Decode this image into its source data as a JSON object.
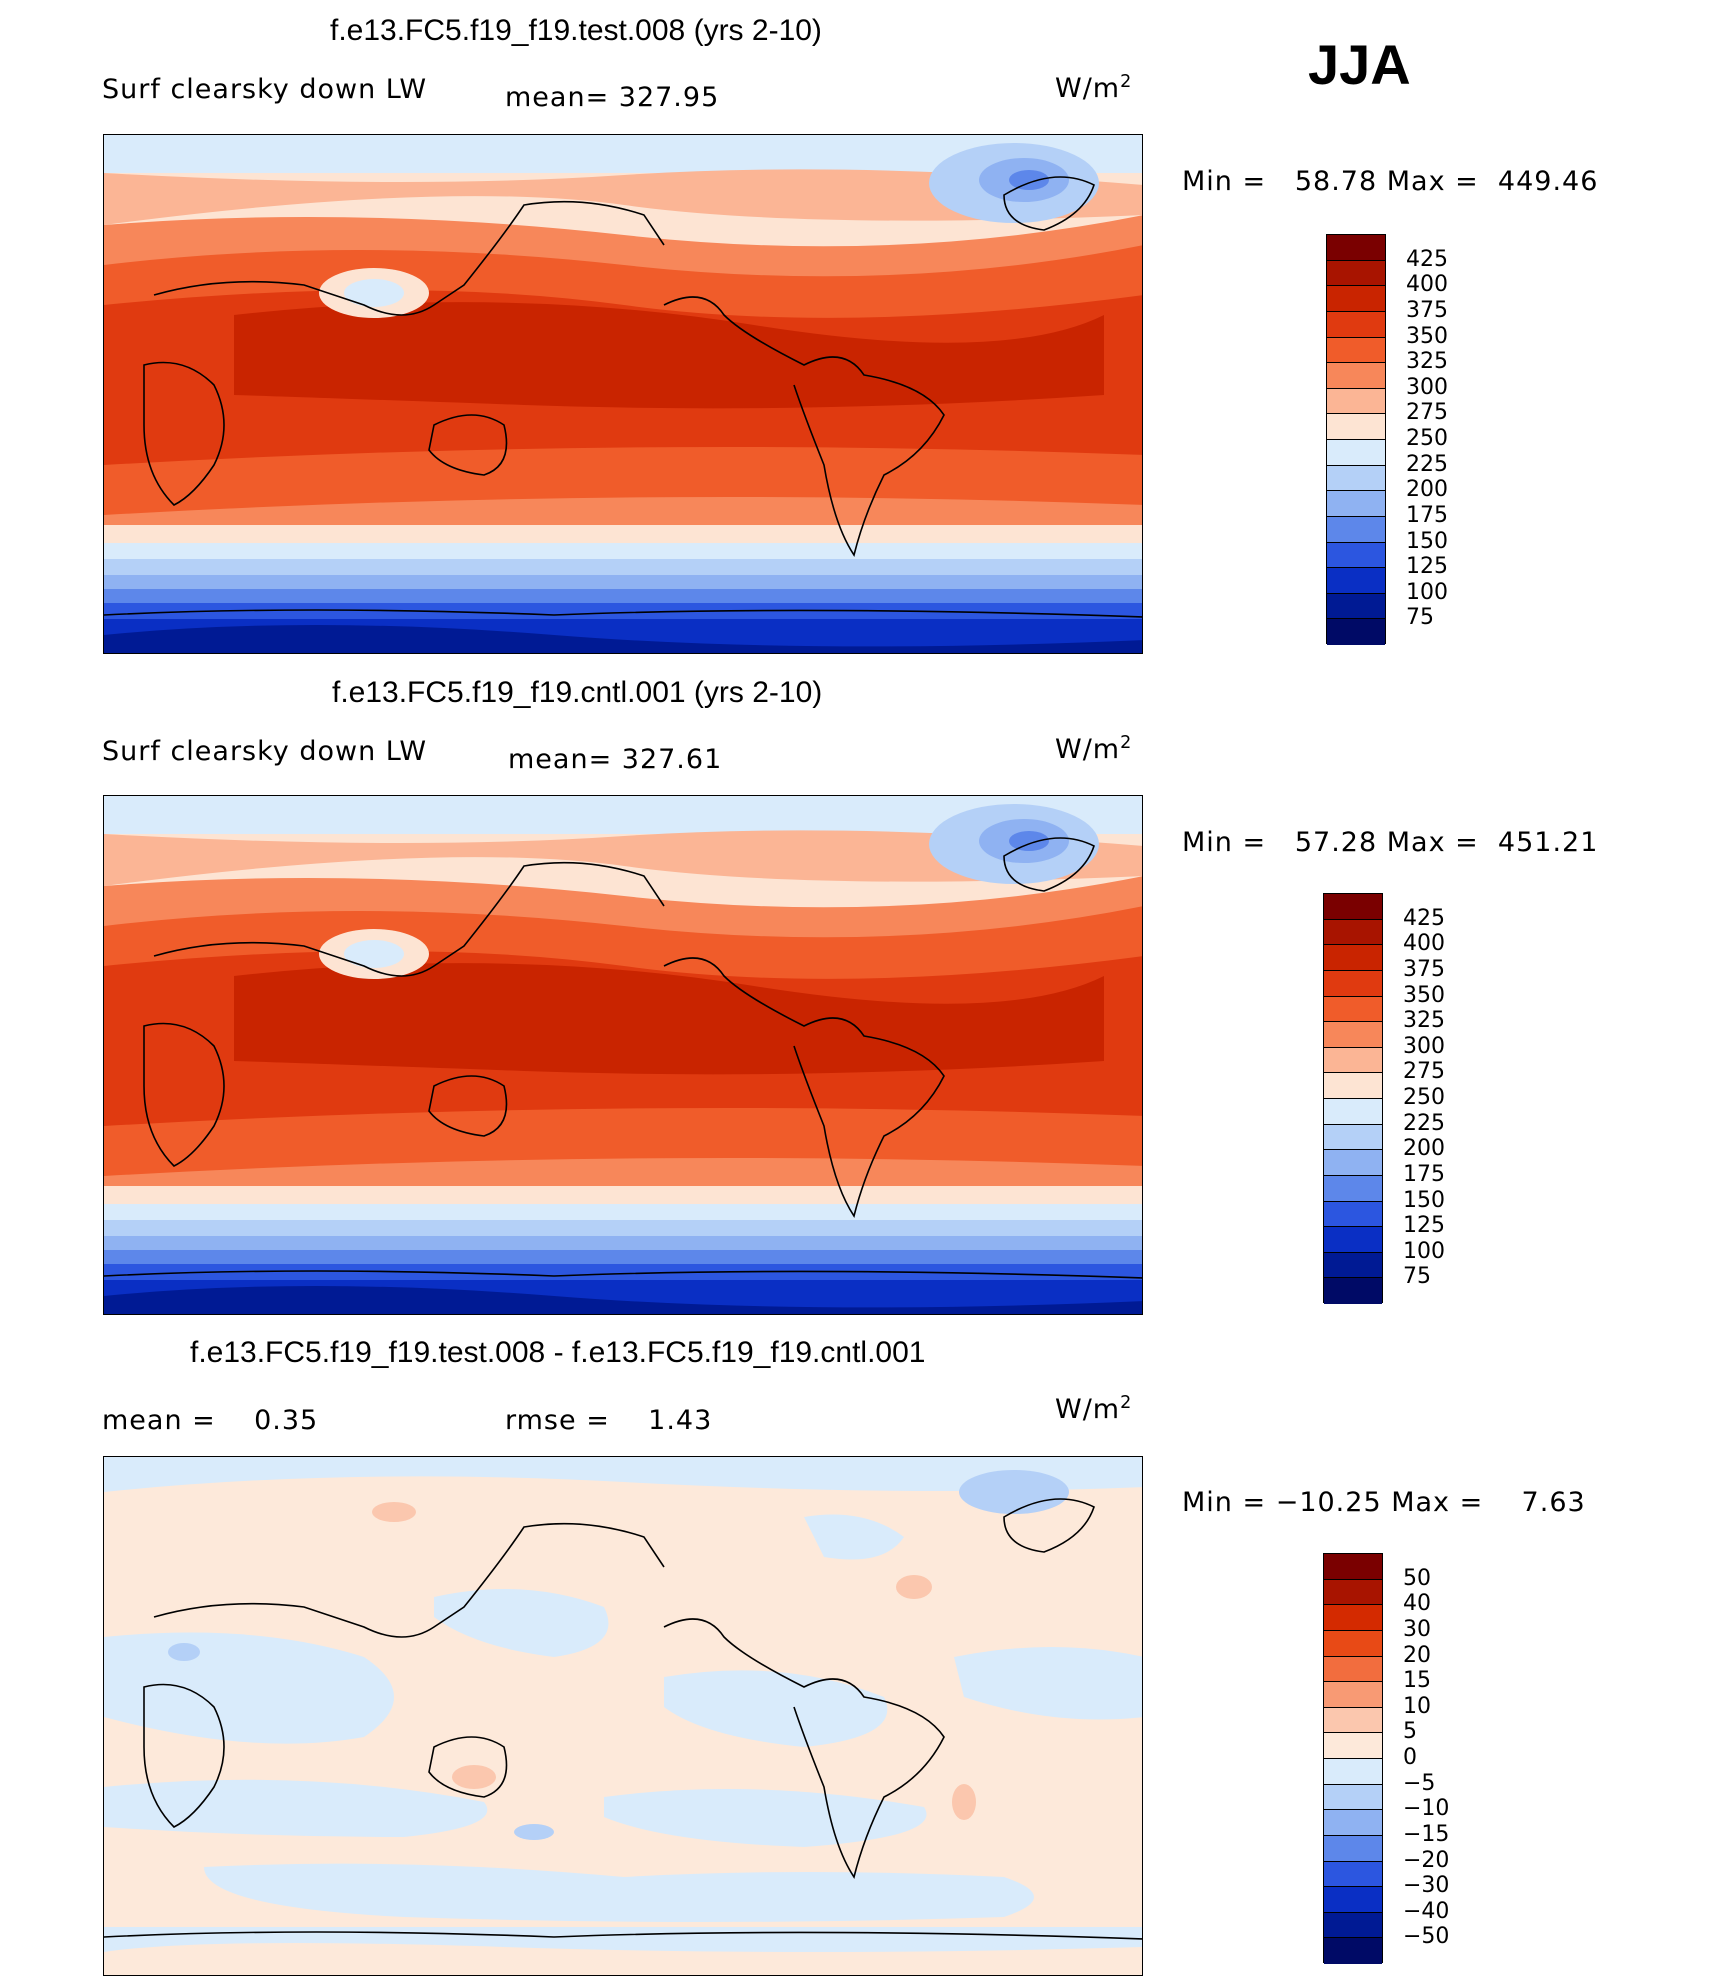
{
  "season": "JJA",
  "units_base": "W/m",
  "units_exp": "2",
  "panels": [
    {
      "title": "f.e13.FC5.f19_f19.test.008 (yrs 2-10)",
      "left_label": "Surf clearsky down LW",
      "stat_label": "mean= 327.95",
      "range_text": "Min =   58.78 Max =  449.46",
      "colorbar_labels": [
        "425",
        "400",
        "375",
        "350",
        "325",
        "300",
        "275",
        "250",
        "225",
        "200",
        "175",
        "150",
        "125",
        "100",
        "75"
      ]
    },
    {
      "title": "f.e13.FC5.f19_f19.cntl.001 (yrs 2-10)",
      "left_label": "Surf clearsky down LW",
      "stat_label": "mean= 327.61",
      "range_text": "Min =   57.28 Max =  451.21",
      "colorbar_labels": [
        "425",
        "400",
        "375",
        "350",
        "325",
        "300",
        "275",
        "250",
        "225",
        "200",
        "175",
        "150",
        "125",
        "100",
        "75"
      ]
    },
    {
      "title": "f.e13.FC5.f19_f19.test.008 - f.e13.FC5.f19_f19.cntl.001",
      "left_label": "mean =    0.35",
      "stat_label": "rmse =    1.43",
      "range_text": "Min = −10.25 Max =    7.63",
      "colorbar_labels": [
        "50",
        "40",
        "30",
        "20",
        "15",
        "10",
        "5",
        "0",
        "−5",
        "−10",
        "−15",
        "−20",
        "−30",
        "−40",
        "−50"
      ]
    }
  ],
  "abs_colors": [
    "#7a0000",
    "#a81400",
    "#c92400",
    "#e03a10",
    "#f05c2a",
    "#f7875a",
    "#fbb595",
    "#fde4d3",
    "#d9ebfb",
    "#b4d0f7",
    "#8fb2f2",
    "#5d87ea",
    "#2c56e0",
    "#0a2fc4",
    "#001a94",
    "#000a66"
  ],
  "diff_colors": [
    "#7a0000",
    "#a81400",
    "#d42a00",
    "#e84a16",
    "#f26d3e",
    "#f89a74",
    "#fbc7ae",
    "#fde9da",
    "#d9ebfb",
    "#b4d0f7",
    "#8fb2f2",
    "#5d87ea",
    "#2c56e0",
    "#0a2fc4",
    "#001a94",
    "#000a66"
  ]
}
